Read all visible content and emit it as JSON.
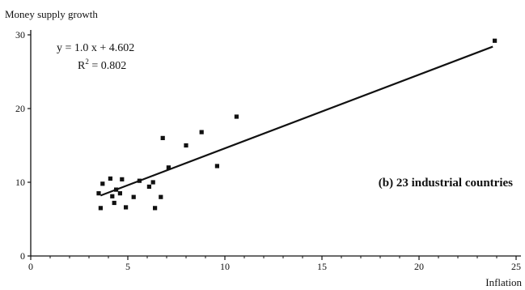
{
  "chart_data": {
    "type": "scatter",
    "title": "",
    "ylabel": "Money supply growth",
    "xlabel": "Inflation",
    "xlim": [
      0,
      25
    ],
    "ylim": [
      0,
      30
    ],
    "xticks": [
      0,
      5,
      10,
      15,
      20,
      25
    ],
    "yticks": [
      0,
      10,
      20,
      30
    ],
    "equation": "y = 1.0 x + 4.602",
    "r2_prefix": "R",
    "r2_exp": "2",
    "r2_suffix": " = 0.802",
    "annotation": "(b) 23 industrial countries",
    "trendline": {
      "slope": 1.0,
      "intercept": 4.602,
      "x_range": [
        3.6,
        23.8
      ]
    },
    "points": [
      {
        "x": 3.5,
        "y": 8.5
      },
      {
        "x": 3.7,
        "y": 9.8
      },
      {
        "x": 3.6,
        "y": 6.5
      },
      {
        "x": 4.1,
        "y": 10.5
      },
      {
        "x": 4.2,
        "y": 8.1
      },
      {
        "x": 4.3,
        "y": 7.2
      },
      {
        "x": 4.4,
        "y": 9.0
      },
      {
        "x": 4.6,
        "y": 8.5
      },
      {
        "x": 4.7,
        "y": 10.4
      },
      {
        "x": 4.9,
        "y": 6.6
      },
      {
        "x": 5.3,
        "y": 8.0
      },
      {
        "x": 5.6,
        "y": 10.2
      },
      {
        "x": 6.1,
        "y": 9.4
      },
      {
        "x": 6.3,
        "y": 10.0
      },
      {
        "x": 6.4,
        "y": 6.5
      },
      {
        "x": 6.7,
        "y": 8.0
      },
      {
        "x": 6.8,
        "y": 16.0
      },
      {
        "x": 7.1,
        "y": 12.0
      },
      {
        "x": 8.0,
        "y": 15.0
      },
      {
        "x": 8.8,
        "y": 16.8
      },
      {
        "x": 9.6,
        "y": 12.2
      },
      {
        "x": 10.6,
        "y": 18.9
      },
      {
        "x": 23.9,
        "y": 29.2
      }
    ]
  }
}
